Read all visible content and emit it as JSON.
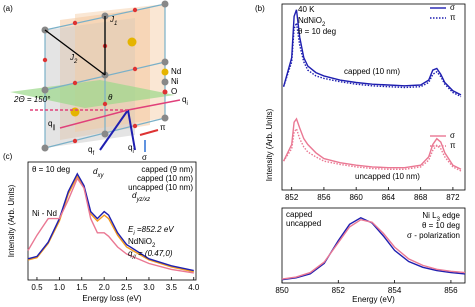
{
  "panel_a": {
    "label": "(a)",
    "j1": [
      "J",
      "1"
    ],
    "j2": [
      "J",
      "2"
    ],
    "angle": "2Θ = 150°",
    "theta": "θ",
    "qi_right": [
      "q",
      "i"
    ],
    "qi_bottom": [
      "q",
      "i"
    ],
    "qf": [
      "q",
      "f"
    ],
    "qpar": [
      "q",
      "∥"
    ],
    "pi": "π",
    "sigma": "σ",
    "legend": [
      "Nd",
      "Ni",
      "O"
    ]
  },
  "chart_data": [
    {
      "type": "line",
      "panel_label": "(b)",
      "ylabel": "Intensity (Arb. Units)",
      "x": [
        851,
        852,
        852.3,
        852.6,
        853,
        853.5,
        854,
        855,
        856,
        858,
        860,
        862,
        864,
        866,
        868,
        869,
        869.5,
        870,
        870.5,
        871,
        872,
        873
      ],
      "xlim": [
        850.8,
        873.5
      ],
      "xticks": [
        852,
        856,
        860,
        864,
        868,
        872
      ],
      "ylim": [
        0,
        2.25
      ],
      "annotations": [
        [
          "40 K"
        ],
        [
          "NdNiO",
          "2"
        ],
        [
          "θ = 10 deg"
        ],
        [
          "capped (10 nm)"
        ],
        [
          "uncapped (10 nm)"
        ]
      ],
      "series": [
        {
          "name": "σ",
          "color": "#1f1fb0",
          "style": "solid",
          "values": [
            1.25,
            1.6,
            2.1,
            2.18,
            1.85,
            1.6,
            1.5,
            1.42,
            1.38,
            1.33,
            1.3,
            1.28,
            1.27,
            1.26,
            1.27,
            1.33,
            1.45,
            1.47,
            1.4,
            1.3,
            1.2,
            1.15
          ]
        },
        {
          "name": "π",
          "color": "#1f1fb0",
          "style": "dotted",
          "values": [
            1.25,
            1.55,
            1.95,
            2.02,
            1.75,
            1.55,
            1.45,
            1.38,
            1.35,
            1.31,
            1.28,
            1.26,
            1.25,
            1.24,
            1.25,
            1.3,
            1.4,
            1.43,
            1.37,
            1.28,
            1.18,
            1.13
          ]
        },
        {
          "name": "σ",
          "color": "#ea7893",
          "style": "solid",
          "values": [
            0.35,
            0.55,
            0.82,
            0.86,
            0.75,
            0.62,
            0.55,
            0.45,
            0.38,
            0.33,
            0.3,
            0.28,
            0.27,
            0.27,
            0.3,
            0.4,
            0.55,
            0.62,
            0.58,
            0.45,
            0.3,
            0.25
          ]
        },
        {
          "name": "π",
          "color": "#ea7893",
          "style": "dotted",
          "values": [
            0.35,
            0.5,
            0.7,
            0.74,
            0.62,
            0.52,
            0.46,
            0.4,
            0.35,
            0.31,
            0.28,
            0.26,
            0.25,
            0.25,
            0.28,
            0.36,
            0.48,
            0.54,
            0.5,
            0.4,
            0.28,
            0.23
          ]
        }
      ]
    },
    {
      "type": "line",
      "xlabel": "Energy (eV)",
      "x": [
        850,
        850.5,
        851,
        851.5,
        852,
        852.4,
        852.8,
        853.2,
        853.6,
        854,
        854.5,
        855,
        855.5,
        856,
        856.5
      ],
      "xlim": [
        850,
        856.5
      ],
      "xticks": [
        850,
        852,
        854,
        856
      ],
      "ylim": [
        0,
        1.15
      ],
      "annotations": [
        [
          "Ni L",
          "3",
          " edge"
        ],
        [
          "θ = 10 deg"
        ],
        [
          "σ - polarization"
        ]
      ],
      "series": [
        {
          "name": "capped",
          "color": "#1f1fb0",
          "style": "solid",
          "values": [
            0.05,
            0.08,
            0.14,
            0.3,
            0.65,
            0.9,
            1.0,
            0.92,
            0.72,
            0.5,
            0.33,
            0.24,
            0.19,
            0.16,
            0.14
          ]
        },
        {
          "name": "uncapped",
          "color": "#ea7893",
          "style": "solid",
          "values": [
            0.06,
            0.09,
            0.16,
            0.32,
            0.62,
            0.86,
            0.97,
            0.93,
            0.76,
            0.55,
            0.37,
            0.27,
            0.21,
            0.18,
            0.16
          ]
        }
      ]
    },
    {
      "type": "line",
      "panel_label": "(c)",
      "xlabel": "Energy loss (eV)",
      "ylabel": "Intensity (Arb. Units)",
      "x": [
        0.3,
        0.5,
        0.75,
        1.0,
        1.2,
        1.4,
        1.55,
        1.7,
        1.85,
        2.0,
        2.1,
        2.3,
        2.5,
        3.0,
        3.5,
        4.0
      ],
      "xlim": [
        0.3,
        4.05
      ],
      "ylim": [
        0.1,
        1.1
      ],
      "xticks": [
        0.5,
        {
          "value": 1,
          "label": "1.0"
        },
        1.5,
        {
          "value": 2,
          "label": "2.0"
        },
        2.5,
        {
          "value": 3,
          "label": "3.0"
        },
        3.5,
        {
          "value": 4,
          "label": "4.0"
        }
      ],
      "annotations": [
        [
          "θ = 10 deg"
        ],
        [
          "d",
          "xy"
        ],
        [
          "d",
          "yz/xz"
        ],
        [
          "Ni - Nd"
        ],
        [
          "E",
          "i",
          " =852.2 eV"
        ],
        [
          "NdNiO",
          "2"
        ],
        [
          "q",
          "//",
          " = (0.47,0)"
        ]
      ],
      "series": [
        {
          "name": "capped (9 nm)",
          "color": "#f39a1e",
          "style": "solid",
          "values": [
            0.27,
            0.29,
            0.41,
            0.6,
            0.83,
            0.98,
            0.88,
            0.66,
            0.6,
            0.65,
            0.62,
            0.48,
            0.38,
            0.27,
            0.21,
            0.17
          ]
        },
        {
          "name": "capped (10 nm)",
          "color": "#1f1fb0",
          "style": "solid",
          "values": [
            0.28,
            0.3,
            0.42,
            0.62,
            0.85,
            1.0,
            0.9,
            0.68,
            0.62,
            0.68,
            0.65,
            0.5,
            0.4,
            0.28,
            0.22,
            0.18
          ]
        },
        {
          "name": "uncapped (10 nm)",
          "color": "#ea7893",
          "style": "solid",
          "values": [
            0.35,
            0.48,
            0.62,
            0.62,
            0.78,
            0.96,
            0.88,
            0.62,
            0.5,
            0.5,
            0.47,
            0.38,
            0.32,
            0.24,
            0.19,
            0.16
          ]
        }
      ]
    }
  ]
}
